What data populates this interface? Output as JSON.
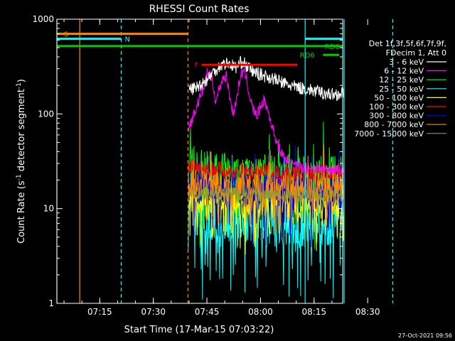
{
  "chart_data": {
    "type": "line",
    "title": "RHESSI Count Rates",
    "xlabel": "Start Time (17-Mar-15 07:03:22)",
    "ylabel_main": "Count Rate (s",
    "ylabel_sup1": "-1",
    "ylabel_mid": " detector segment",
    "ylabel_sup2": "-1",
    "ylabel_end": ")",
    "x_unit": "minutes after 07:03:22",
    "xlim": [
      0,
      80
    ],
    "yscale": "log",
    "ylim": [
      1,
      1000
    ],
    "xticks": [
      {
        "t": 12,
        "label": "07:15"
      },
      {
        "t": 27,
        "label": "07:30"
      },
      {
        "t": 42,
        "label": "07:45"
      },
      {
        "t": 57,
        "label": "08:00"
      },
      {
        "t": 72,
        "label": "08:15"
      },
      {
        "t": 87,
        "label": "08:30"
      }
    ],
    "yticks": [
      {
        "v": 1,
        "label": "1"
      },
      {
        "v": 10,
        "label": "10"
      },
      {
        "v": 100,
        "label": "100"
      },
      {
        "v": 1000,
        "label": "1000"
      }
    ],
    "data_start": 36.8,
    "data_end": 80.4,
    "legend_header": [
      "Det 1f,3f,5f,6f,7f,9f,",
      "FDecim 1, Att 0"
    ],
    "series": [
      {
        "name": "3 - 6 keV",
        "color": "#ffffff",
        "level": [
          [
            36.8,
            180
          ],
          [
            39,
            190
          ],
          [
            42,
            230
          ],
          [
            44,
            280
          ],
          [
            46,
            330
          ],
          [
            48,
            345
          ],
          [
            50,
            310
          ],
          [
            52,
            360
          ],
          [
            53,
            320
          ],
          [
            55,
            280
          ],
          [
            57,
            260
          ],
          [
            60,
            240
          ],
          [
            63,
            215
          ],
          [
            66,
            195
          ],
          [
            69,
            185
          ],
          [
            72,
            175
          ],
          [
            75,
            165
          ],
          [
            77.5,
            160
          ],
          [
            80.4,
            165
          ]
        ],
        "noise": 0.07
      },
      {
        "name": "6 - 12 keV",
        "color": "#ff00ff",
        "level": [
          [
            36.8,
            70
          ],
          [
            38,
            90
          ],
          [
            40,
            150
          ],
          [
            41,
            180
          ],
          [
            42,
            270
          ],
          [
            43.5,
            240
          ],
          [
            44.5,
            130
          ],
          [
            45.5,
            190
          ],
          [
            46.5,
            240
          ],
          [
            47.5,
            250
          ],
          [
            48.5,
            140
          ],
          [
            49.5,
            100
          ],
          [
            50.5,
            160
          ],
          [
            51.5,
            260
          ],
          [
            52,
            280
          ],
          [
            53,
            250
          ],
          [
            54,
            150
          ],
          [
            55,
            110
          ],
          [
            56,
            95
          ],
          [
            57,
            120
          ],
          [
            58,
            140
          ],
          [
            59,
            110
          ],
          [
            60,
            80
          ],
          [
            61,
            60
          ],
          [
            62,
            45
          ],
          [
            63.5,
            35
          ],
          [
            65,
            30
          ],
          [
            67,
            28
          ],
          [
            70,
            27
          ],
          [
            75,
            26
          ],
          [
            80.4,
            26
          ]
        ],
        "noise": 0.06
      },
      {
        "name": "12 - 25 keV",
        "color": "#00ff00",
        "level": [
          [
            36.8,
            30
          ],
          [
            40,
            25
          ],
          [
            50,
            23
          ],
          [
            60,
            23
          ],
          [
            70,
            22
          ],
          [
            80.4,
            22
          ]
        ],
        "noise": 0.22
      },
      {
        "name": "25 - 50 keV",
        "color": "#00ffff",
        "level": [
          [
            36.8,
            9
          ],
          [
            40,
            8
          ],
          [
            50,
            7
          ],
          [
            60,
            7
          ],
          [
            70,
            7
          ],
          [
            80.4,
            7
          ]
        ],
        "noise": 0.25
      },
      {
        "name": "50 - 100 keV",
        "color": "#ffff00",
        "level": [
          [
            36.8,
            13
          ],
          [
            50,
            11
          ],
          [
            60,
            11
          ],
          [
            70,
            11
          ],
          [
            80.4,
            11
          ]
        ],
        "noise": 0.14
      },
      {
        "name": "100 - 300 keV",
        "color": "#ff0000",
        "level": [
          [
            36.8,
            28
          ],
          [
            50,
            24
          ],
          [
            60,
            24
          ],
          [
            70,
            23
          ],
          [
            80.4,
            23
          ]
        ],
        "noise": 0.1
      },
      {
        "name": "300 - 800 keV",
        "color": "#0000ff",
        "level": [
          [
            36.8,
            18
          ],
          [
            50,
            16
          ],
          [
            60,
            16
          ],
          [
            70,
            16
          ],
          [
            80.4,
            16
          ]
        ],
        "noise": 0.18
      },
      {
        "name": "800 - 7000 keV",
        "color": "#ff8800",
        "level": [
          [
            36.8,
            19
          ],
          [
            50,
            17
          ],
          [
            60,
            17
          ],
          [
            70,
            17
          ],
          [
            80.4,
            17
          ]
        ],
        "noise": 0.15
      },
      {
        "name": "7000 - 15000 keV",
        "color": "#999933",
        "level": [
          [
            36.8,
            15
          ],
          [
            50,
            14
          ],
          [
            60,
            14
          ],
          [
            70,
            14
          ],
          [
            80.4,
            14
          ]
        ],
        "noise": 0.08
      }
    ],
    "bars": [
      {
        "label": "S",
        "color": "#ff8800",
        "y": 700,
        "t0": 0,
        "t1": 36.8,
        "label_t": 2
      },
      {
        "label": "N",
        "color": "#00ffff",
        "y": 620,
        "t0": 0,
        "t1": 18,
        "label_t": 19
      },
      {
        "label": "F",
        "color": "#ff0000",
        "y": 330,
        "t0": 40.5,
        "t1": 67.3,
        "label_t": 38.5
      },
      {
        "label": "RD6",
        "color": "#00cc00",
        "y": 520,
        "t0": 0,
        "t1": 80,
        "label_t": 75
      },
      {
        "label": "RD6",
        "color": "#00cc00",
        "y": 420,
        "t0": 74.5,
        "t1": 79,
        "label_t": 68
      }
    ],
    "eclipse_blocks": [
      {
        "color": "#00ffff",
        "y": 620,
        "t0": 69.5,
        "t1": 80
      }
    ],
    "vlines": [
      {
        "t": 0,
        "color": "#00ffff",
        "dash": false
      },
      {
        "t": 6.4,
        "color": "#ff8800",
        "dash": false
      },
      {
        "t": 18,
        "color": "#00ffff",
        "dash": true
      },
      {
        "t": 36.7,
        "color": "#ff8800",
        "dash": true
      },
      {
        "t": 69.5,
        "color": "#00ffff",
        "dash": false
      },
      {
        "t": 80.4,
        "color": "#00ffff",
        "dash": false
      },
      {
        "t": 94,
        "color": "#00ffff",
        "dash": true
      }
    ]
  },
  "footer": {
    "date": "27-Oct-2021 09:56"
  }
}
